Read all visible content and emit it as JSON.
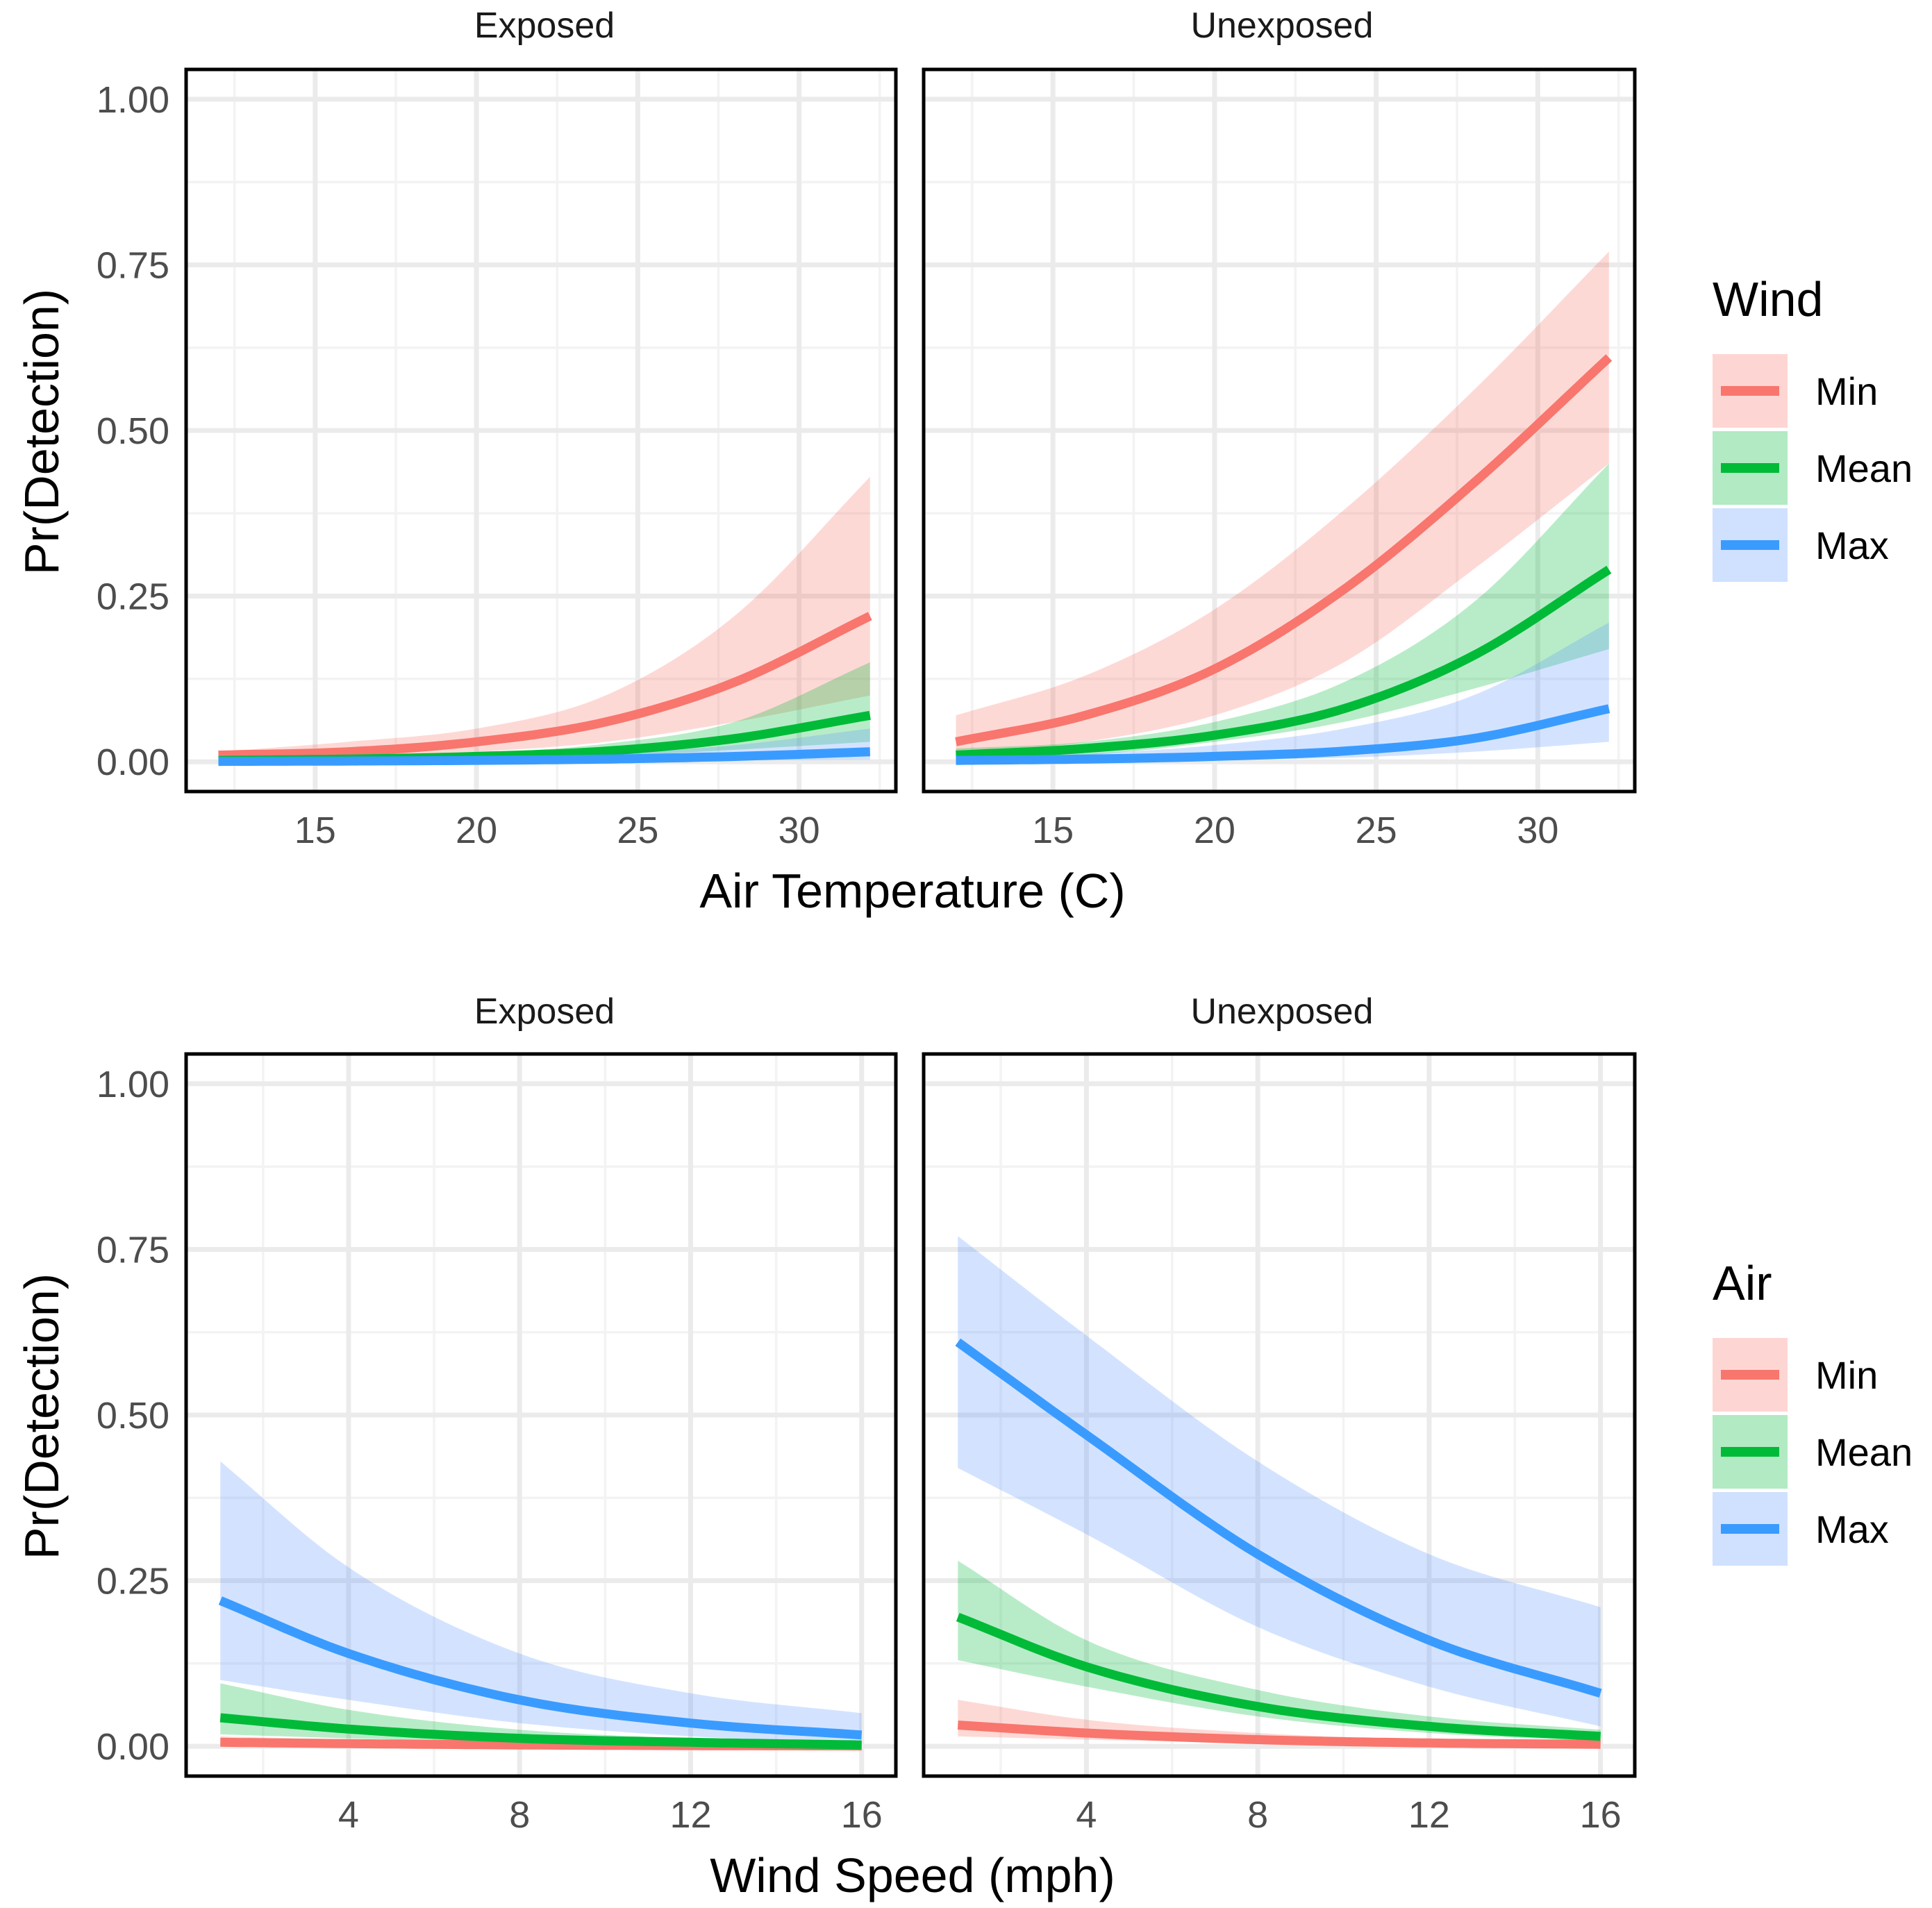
{
  "colors": {
    "min": "#F8766D",
    "mean": "#00BA38",
    "max": "#3A9BFF",
    "min_fill": "#F8766D",
    "mean_fill": "#00BA38",
    "max_fill": "#619CFF"
  },
  "chart_data": [
    {
      "type": "line",
      "facet": "Exposed",
      "xlabel": "Air Temperature (C)",
      "ylabel": "Pr(Detection)",
      "xlim": [
        11,
        33
      ],
      "ylim": [
        0,
        1
      ],
      "xticks": [
        15,
        20,
        25,
        30
      ],
      "yticks": [
        "0.00",
        "0.25",
        "0.50",
        "0.75",
        "1.00"
      ],
      "legend_title": "Wind",
      "series": [
        {
          "name": "Min",
          "x": [
            12,
            16,
            20,
            24,
            28,
            32.2
          ],
          "y": [
            0.01,
            0.015,
            0.03,
            0.06,
            0.12,
            0.22
          ],
          "lower": [
            0.005,
            0.008,
            0.015,
            0.03,
            0.06,
            0.1
          ],
          "upper": [
            0.015,
            0.03,
            0.05,
            0.1,
            0.22,
            0.43
          ]
        },
        {
          "name": "Mean",
          "x": [
            12,
            16,
            20,
            24,
            28,
            32.2
          ],
          "y": [
            0.002,
            0.004,
            0.008,
            0.016,
            0.035,
            0.07
          ],
          "lower": [
            0.001,
            0.002,
            0.004,
            0.008,
            0.018,
            0.03
          ],
          "upper": [
            0.004,
            0.007,
            0.013,
            0.027,
            0.06,
            0.15
          ]
        },
        {
          "name": "Max",
          "x": [
            12,
            16,
            20,
            24,
            28,
            32.2
          ],
          "y": [
            0.0005,
            0.001,
            0.002,
            0.004,
            0.008,
            0.015
          ],
          "lower": [
            0.0001,
            0.0003,
            0.0006,
            0.001,
            0.002,
            0.003
          ],
          "upper": [
            0.002,
            0.003,
            0.006,
            0.012,
            0.025,
            0.05
          ]
        }
      ]
    },
    {
      "type": "line",
      "facet": "Unexposed",
      "xlabel": "Air Temperature (C)",
      "ylabel": "Pr(Detection)",
      "xlim": [
        11,
        33
      ],
      "ylim": [
        0,
        1
      ],
      "xticks": [
        15,
        20,
        25,
        30
      ],
      "yticks": [
        "0.00",
        "0.25",
        "0.50",
        "0.75",
        "1.00"
      ],
      "legend_title": "Wind",
      "series": [
        {
          "name": "Min",
          "x": [
            12,
            16,
            20,
            24,
            28,
            32.2
          ],
          "y": [
            0.03,
            0.07,
            0.14,
            0.26,
            0.42,
            0.61
          ],
          "lower": [
            0.01,
            0.03,
            0.07,
            0.15,
            0.29,
            0.45
          ],
          "upper": [
            0.07,
            0.13,
            0.23,
            0.38,
            0.56,
            0.77
          ]
        },
        {
          "name": "Mean",
          "x": [
            12,
            16,
            20,
            24,
            28,
            32.2
          ],
          "y": [
            0.01,
            0.02,
            0.04,
            0.08,
            0.16,
            0.29
          ],
          "lower": [
            0.005,
            0.01,
            0.03,
            0.06,
            0.11,
            0.17
          ],
          "upper": [
            0.02,
            0.03,
            0.06,
            0.12,
            0.24,
            0.45
          ]
        },
        {
          "name": "Max",
          "x": [
            12,
            16,
            20,
            24,
            28,
            32.2
          ],
          "y": [
            0.002,
            0.004,
            0.008,
            0.016,
            0.035,
            0.08
          ],
          "lower": [
            0.0005,
            0.001,
            0.003,
            0.006,
            0.015,
            0.03
          ],
          "upper": [
            0.006,
            0.012,
            0.025,
            0.05,
            0.1,
            0.21
          ]
        }
      ]
    },
    {
      "type": "line",
      "facet": "Exposed",
      "xlabel": "Wind Speed (mph)",
      "ylabel": "Pr(Detection)",
      "xlim": [
        0.2,
        16.8
      ],
      "ylim": [
        0,
        1
      ],
      "xticks": [
        4,
        8,
        12,
        16
      ],
      "yticks": [
        "0.00",
        "0.25",
        "0.50",
        "0.75",
        "1.00"
      ],
      "legend_title": "Air",
      "series": [
        {
          "name": "Min",
          "x": [
            1,
            4,
            8,
            12,
            16
          ],
          "y": [
            0.006,
            0.004,
            0.002,
            0.001,
            0.0005
          ],
          "lower": [
            0.002,
            0.001,
            0.0005,
            0.0002,
            0.0001
          ],
          "upper": [
            0.015,
            0.01,
            0.005,
            0.003,
            0.002
          ]
        },
        {
          "name": "Mean",
          "x": [
            1,
            4,
            8,
            12,
            16
          ],
          "y": [
            0.043,
            0.026,
            0.012,
            0.006,
            0.002
          ],
          "lower": [
            0.018,
            0.012,
            0.006,
            0.002,
            0.001
          ],
          "upper": [
            0.095,
            0.055,
            0.025,
            0.012,
            0.006
          ]
        },
        {
          "name": "Max",
          "x": [
            1,
            4,
            8,
            12,
            16
          ],
          "y": [
            0.22,
            0.14,
            0.07,
            0.035,
            0.017
          ],
          "lower": [
            0.1,
            0.07,
            0.035,
            0.015,
            0.005
          ],
          "upper": [
            0.43,
            0.27,
            0.14,
            0.08,
            0.05
          ]
        }
      ]
    },
    {
      "type": "line",
      "facet": "Unexposed",
      "xlabel": "Wind Speed (mph)",
      "ylabel": "Pr(Detection)",
      "xlim": [
        0.2,
        16.8
      ],
      "ylim": [
        0,
        1
      ],
      "xticks": [
        4,
        8,
        12,
        16
      ],
      "yticks": [
        "0.00",
        "0.25",
        "0.50",
        "0.75",
        "1.00"
      ],
      "legend_title": "Air",
      "series": [
        {
          "name": "Min",
          "x": [
            1,
            4,
            8,
            12,
            16
          ],
          "y": [
            0.032,
            0.02,
            0.01,
            0.005,
            0.003
          ],
          "lower": [
            0.015,
            0.01,
            0.005,
            0.002,
            0.001
          ],
          "upper": [
            0.07,
            0.04,
            0.02,
            0.01,
            0.007
          ]
        },
        {
          "name": "Mean",
          "x": [
            1,
            4,
            8,
            12,
            16
          ],
          "y": [
            0.195,
            0.12,
            0.06,
            0.03,
            0.015
          ],
          "lower": [
            0.13,
            0.09,
            0.045,
            0.02,
            0.008
          ],
          "upper": [
            0.28,
            0.16,
            0.085,
            0.045,
            0.025
          ]
        },
        {
          "name": "Max",
          "x": [
            1,
            4,
            8,
            12,
            16
          ],
          "y": [
            0.61,
            0.47,
            0.29,
            0.16,
            0.08
          ],
          "lower": [
            0.42,
            0.32,
            0.18,
            0.09,
            0.03
          ],
          "upper": [
            0.77,
            0.62,
            0.43,
            0.29,
            0.21
          ]
        }
      ]
    }
  ],
  "legends": [
    {
      "title": "Wind",
      "items": [
        "Min",
        "Mean",
        "Max"
      ]
    },
    {
      "title": "Air",
      "items": [
        "Min",
        "Mean",
        "Max"
      ]
    }
  ]
}
